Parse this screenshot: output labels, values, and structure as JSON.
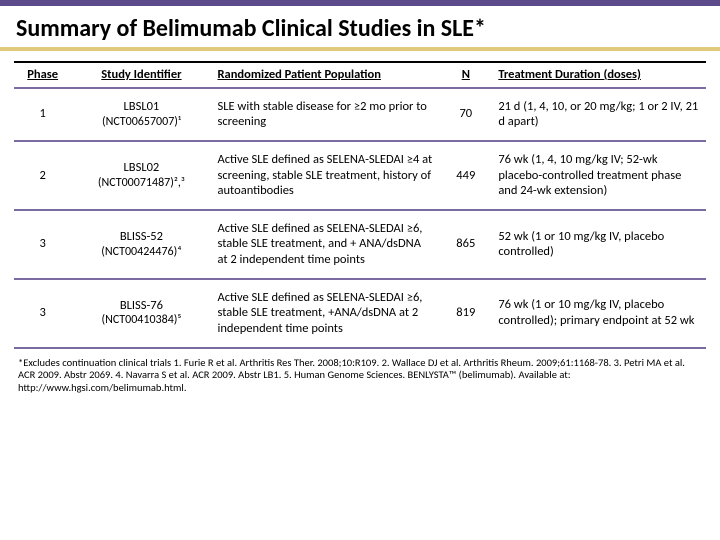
{
  "title": "Summary of Belimumab Clinical Studies in SLE*",
  "columns": {
    "phase": "Phase",
    "id": "Study Identifier",
    "pop": "Randomized Patient Population",
    "n": "N",
    "dur": "Treatment Duration (doses)"
  },
  "rows": [
    {
      "phase": "1",
      "id_name": "LBSL01",
      "id_nct": "(NCT00657007)¹",
      "pop": "SLE with stable disease for ≥2 mo prior to screening",
      "n": "70",
      "dur": "21 d (1, 4, 10, or 20 mg/kg; 1 or 2 IV, 21 d apart)"
    },
    {
      "phase": "2",
      "id_name": "LBSL02",
      "id_nct": "(NCT00071487)²,³",
      "pop": "Active SLE defined as SELENA-SLEDAI ≥4 at screening, stable SLE treatment, history of autoantibodies",
      "n": "449",
      "dur": "76 wk (1, 4, 10 mg/kg IV; 52-wk placebo-controlled treatment phase and 24-wk extension)"
    },
    {
      "phase": "3",
      "id_name": "BLISS-52",
      "id_nct": "(NCT00424476)⁴",
      "pop": "Active SLE defined as SELENA-SLEDAI ≥6, stable SLE treatment, and + ANA/dsDNA at 2 independent time points",
      "n": "865",
      "dur": "52 wk (1 or 10 mg/kg IV, placebo controlled)"
    },
    {
      "phase": "3",
      "id_name": "BLISS-76",
      "id_nct": "(NCT00410384)⁵",
      "pop": "Active SLE defined as SELENA-SLEDAI ≥6, stable SLE treatment, +ANA/dsDNA at 2 independent time points",
      "n": "819",
      "dur": "76 wk (1 or 10 mg/kg IV, placebo controlled); primary endpoint at 52 wk"
    }
  ],
  "footnote": "*Excludes continuation clinical trials\n1. Furie R et al. Arthritis Res Ther. 2008;10:R109. 2. Wallace DJ et al. Arthritis Rheum. 2009;61:1168-78. 3. Petri MA et al. ACR 2009. Abstr 2069. 4. Navarra S et al. ACR 2009. Abstr LB1. 5. Human Genome Sciences. BENLYSTA™ (belimumab). Available at: http://www.hgsi.com/belimumab.html."
}
